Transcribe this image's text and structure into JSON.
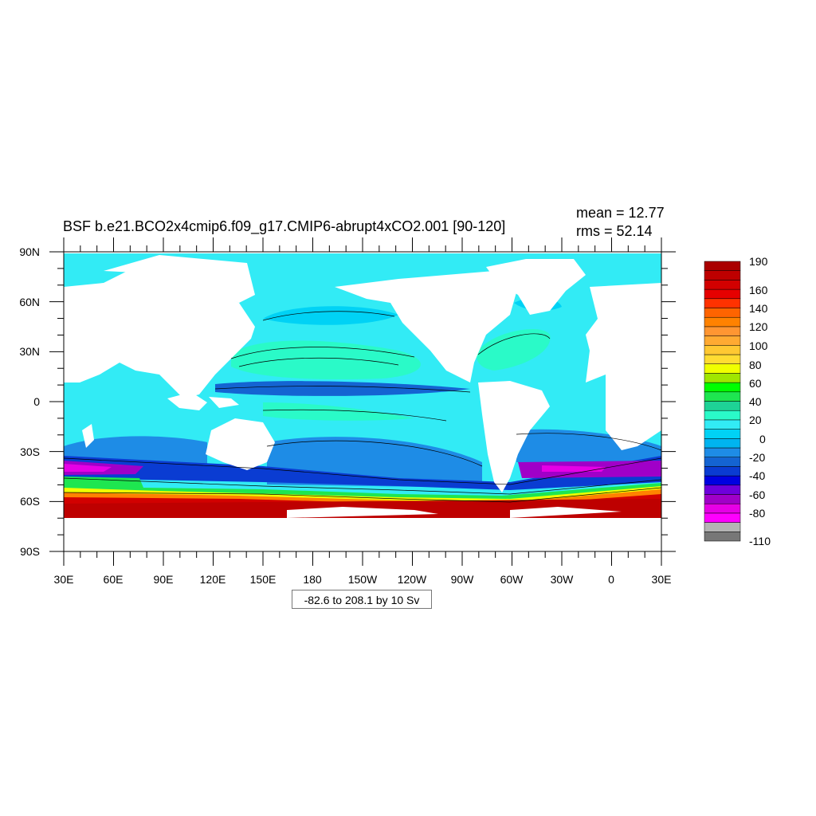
{
  "title": "BSF b.e21.BCO2x4cmip6.f09_g17.CMIP6-abrupt4xCO2.001 [90-120]",
  "stats": {
    "mean": "mean = 12.77",
    "rms": "rms = 52.14"
  },
  "info_label": "-82.6 to 208.1 by 10 Sv",
  "y_ticks": [
    "90N",
    "60N",
    "30N",
    "0",
    "30S",
    "60S",
    "90S"
  ],
  "x_ticks": [
    "30E",
    "60E",
    "90E",
    "120E",
    "150E",
    "180",
    "150W",
    "120W",
    "90W",
    "60W",
    "30W",
    "0",
    "30E"
  ],
  "colorbar": {
    "colors": [
      "#777777",
      "#b4b4b4",
      "#ff00ff",
      "#e600e6",
      "#a000c8",
      "#6e00dc",
      "#0000e1",
      "#0a3cd2",
      "#1464d2",
      "#1e8ce6",
      "#00b4f0",
      "#00d2f5",
      "#32ebf5",
      "#2afac8",
      "#1ed296",
      "#1ee650",
      "#00ff00",
      "#a0e600",
      "#f0ff00",
      "#ffdc32",
      "#ffc832",
      "#ffaa32",
      "#ff9632",
      "#ff8200",
      "#ff6400",
      "#ff3200",
      "#e60000",
      "#d20000",
      "#be0000",
      "#aa0000"
    ],
    "labels": [
      "190",
      "160",
      "140",
      "120",
      "100",
      "80",
      "60",
      "40",
      "20",
      "0",
      "-20",
      "-40",
      "-60",
      "-80",
      "-110"
    ]
  },
  "fill_colors": {
    "ocean_base": "#32ebf5",
    "weak_neg": "#00d2f5",
    "neg": "#1e8ce6",
    "strong_neg": "#1464d2",
    "gyre_pos": "#2afac8",
    "acc_deep": "#0a3cd2",
    "acc_purple": "#a000c8",
    "acc_magenta": "#e600e6",
    "acc_green": "#1ee650",
    "acc_yellow": "#f0ff00",
    "acc_orange": "#ff8200",
    "acc_red": "#d20000",
    "acc_darkred": "#be0000",
    "land": "#ffffff"
  }
}
